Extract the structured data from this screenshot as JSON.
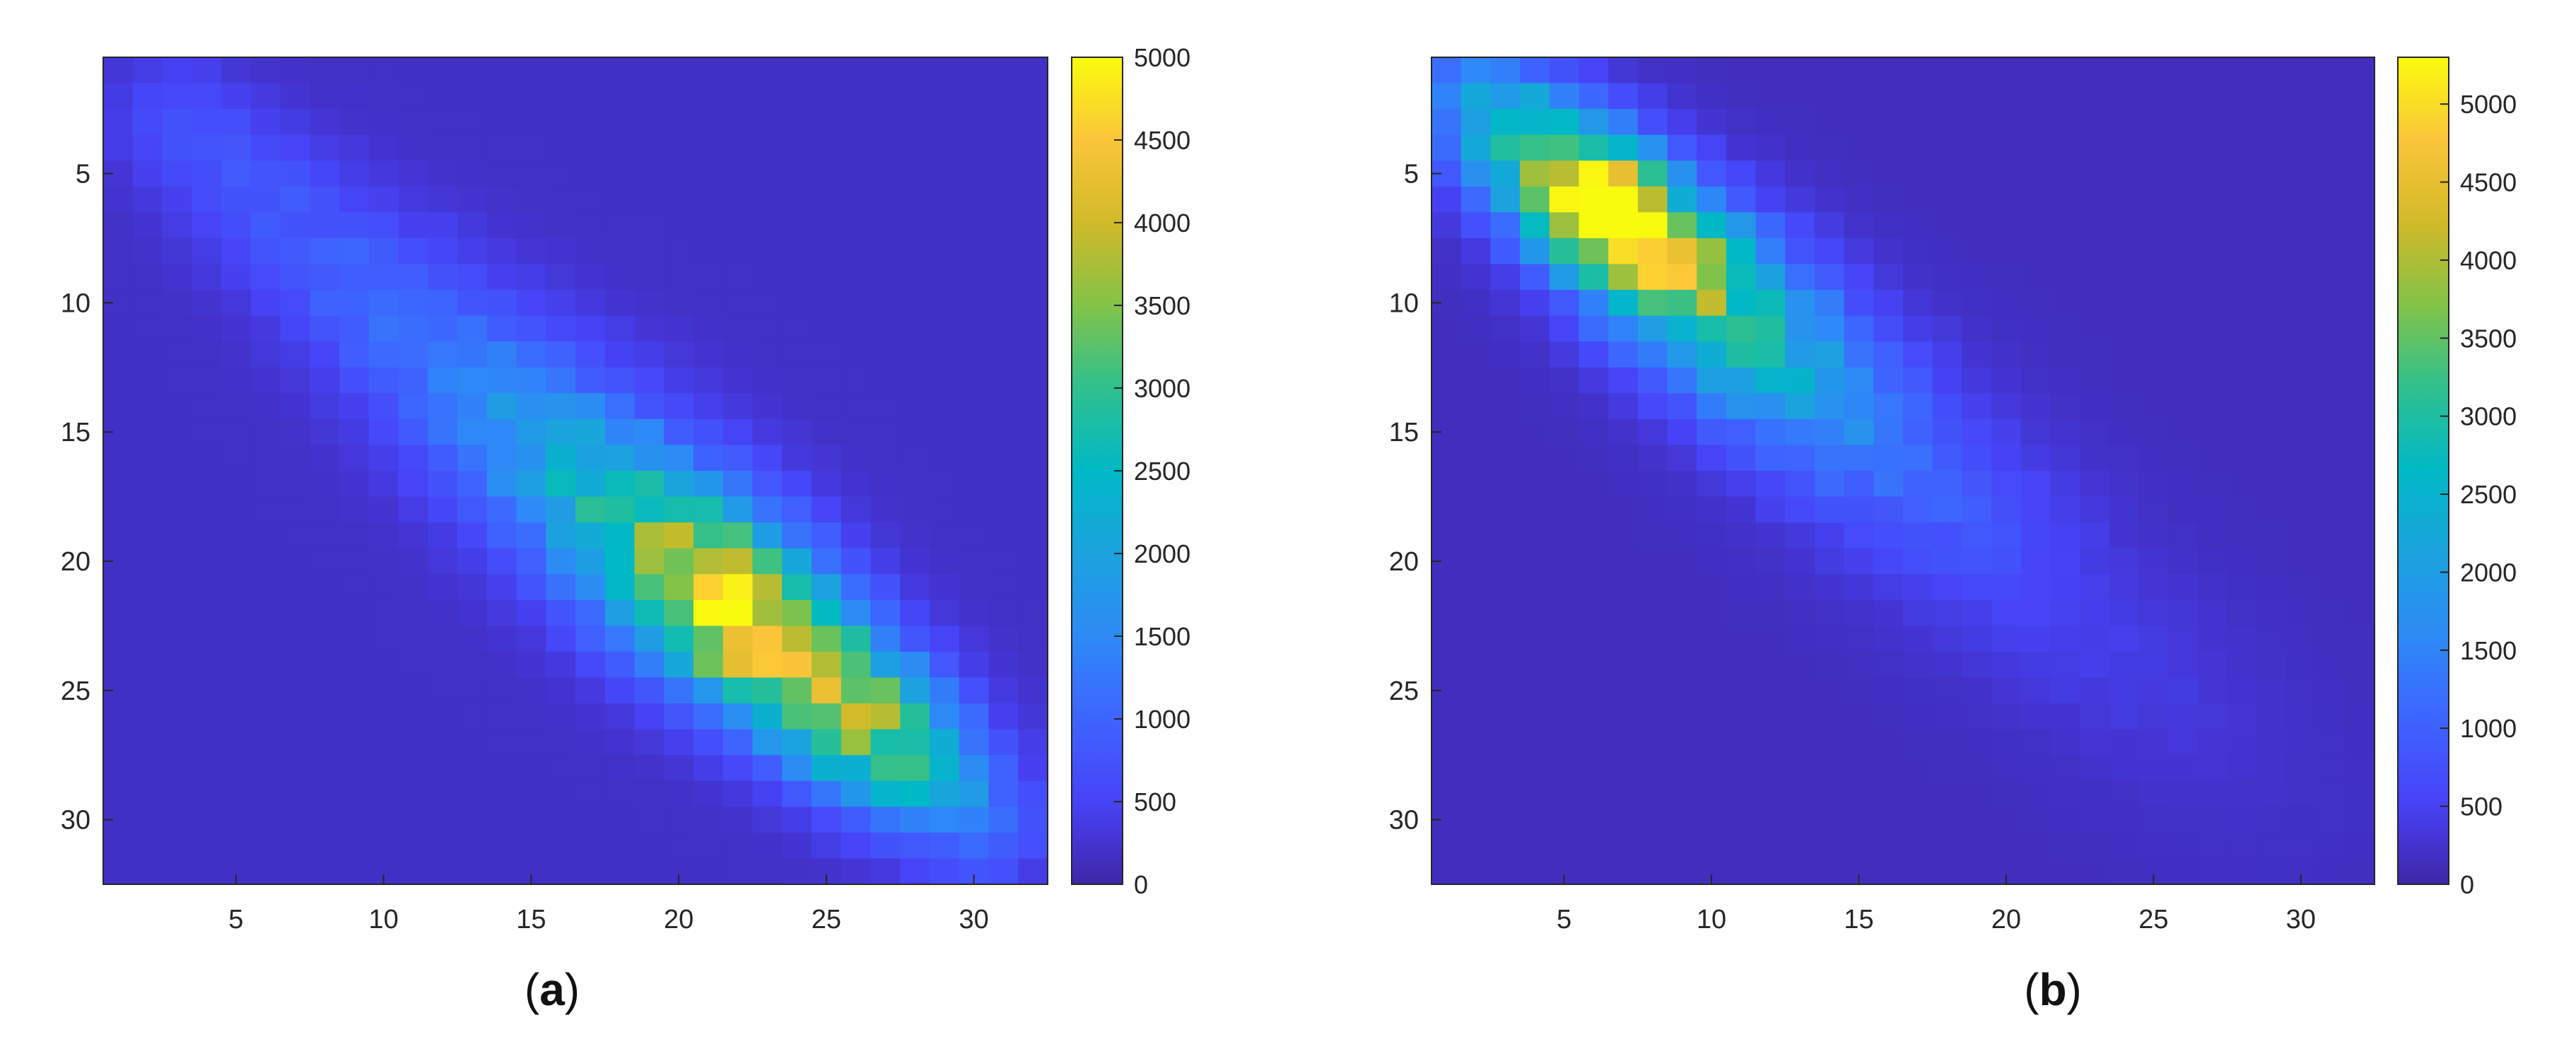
{
  "chart_data": [
    {
      "type": "heatmap",
      "panel_label": "a",
      "rows": 32,
      "cols": 32,
      "xlim": [
        0.5,
        32.5
      ],
      "ylim": [
        0.5,
        32.5
      ],
      "y_axis_reversed": true,
      "xticks": [
        5,
        10,
        15,
        20,
        25,
        30
      ],
      "yticks": [
        5,
        10,
        15,
        20,
        25,
        30
      ],
      "colorbar": {
        "min": 0,
        "max": 5000,
        "ticks": [
          0,
          500,
          1000,
          1500,
          2000,
          2500,
          3000,
          3500,
          4000,
          4500,
          5000
        ],
        "colormap": "parula"
      },
      "pattern": {
        "description_free": true,
        "ridge_start": [
          3,
          3
        ],
        "ridge_end": [
          30,
          30
        ],
        "base_value": 180,
        "ridge_profile": [
          [
            3,
            750
          ],
          [
            8,
            900
          ],
          [
            12,
            1300
          ],
          [
            15,
            1800
          ],
          [
            18,
            2900
          ],
          [
            20,
            3800
          ],
          [
            22,
            4800
          ],
          [
            24,
            4200
          ],
          [
            26,
            3800
          ],
          [
            28,
            2800
          ],
          [
            30,
            1400
          ]
        ],
        "width_profile": [
          [
            3,
            1.6
          ],
          [
            10,
            2.2
          ],
          [
            15,
            2.4
          ],
          [
            20,
            2.3
          ],
          [
            25,
            2.0
          ],
          [
            30,
            1.7
          ]
        ]
      }
    },
    {
      "type": "heatmap",
      "panel_label": "b",
      "rows": 32,
      "cols": 32,
      "xlim": [
        0.5,
        32.5
      ],
      "ylim": [
        0.5,
        32.5
      ],
      "y_axis_reversed": true,
      "xticks": [
        5,
        10,
        15,
        20,
        25,
        30
      ],
      "yticks": [
        5,
        10,
        15,
        20,
        25,
        30
      ],
      "colorbar": {
        "min": 0,
        "max": 5300,
        "ticks": [
          0,
          500,
          1000,
          1500,
          2000,
          2500,
          3000,
          3500,
          4000,
          4500,
          5000
        ],
        "colormap": "parula"
      },
      "pattern": {
        "ridge_start": [
          1,
          1
        ],
        "ridge_end": [
          30,
          30
        ],
        "base_value": 150,
        "ridge_profile": [
          [
            1,
            1100
          ],
          [
            3,
            2900
          ],
          [
            5,
            4600
          ],
          [
            6,
            5300
          ],
          [
            8,
            4800
          ],
          [
            10,
            3600
          ],
          [
            12,
            2600
          ],
          [
            14,
            1900
          ],
          [
            16,
            1300
          ],
          [
            19,
            800
          ],
          [
            22,
            500
          ],
          [
            25,
            380
          ],
          [
            28,
            260
          ],
          [
            30,
            200
          ]
        ],
        "width_profile": [
          [
            1,
            1.6
          ],
          [
            6,
            1.8
          ],
          [
            12,
            2.2
          ],
          [
            20,
            2.5
          ],
          [
            30,
            2.5
          ]
        ]
      }
    }
  ]
}
